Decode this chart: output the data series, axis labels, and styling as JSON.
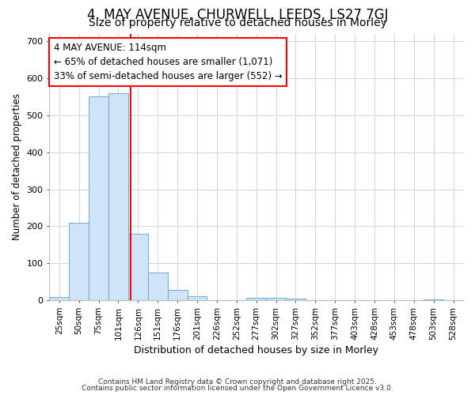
{
  "title1": "4, MAY AVENUE, CHURWELL, LEEDS, LS27 7GJ",
  "title2": "Size of property relative to detached houses in Morley",
  "xlabel": "Distribution of detached houses by size in Morley",
  "ylabel": "Number of detached properties",
  "categories": [
    "25sqm",
    "50sqm",
    "75sqm",
    "101sqm",
    "126sqm",
    "151sqm",
    "176sqm",
    "201sqm",
    "226sqm",
    "252sqm",
    "277sqm",
    "302sqm",
    "327sqm",
    "352sqm",
    "377sqm",
    "403sqm",
    "428sqm",
    "453sqm",
    "478sqm",
    "503sqm",
    "528sqm"
  ],
  "values": [
    10,
    210,
    550,
    560,
    180,
    75,
    28,
    12,
    0,
    0,
    8,
    8,
    5,
    0,
    0,
    0,
    0,
    0,
    0,
    2,
    0
  ],
  "bar_color": "#d0e4f7",
  "bar_edge_color": "#7ab0d4",
  "red_line_x": 3.62,
  "annotation_line1": "4 MAY AVENUE: 114sqm",
  "annotation_line2": "← 65% of detached houses are smaller (1,071)",
  "annotation_line3": "33% of semi-detached houses are larger (552) →",
  "annotation_box_color": "white",
  "annotation_box_edge_color": "red",
  "ylim": [
    0,
    720
  ],
  "yticks": [
    0,
    100,
    200,
    300,
    400,
    500,
    600,
    700
  ],
  "footer1": "Contains HM Land Registry data © Crown copyright and database right 2025.",
  "footer2": "Contains public sector information licensed under the Open Government Licence v3.0.",
  "background_color": "white",
  "grid_color": "#d0d8f0",
  "title1_fontsize": 12,
  "title2_fontsize": 10,
  "annotation_fontsize": 8.5
}
